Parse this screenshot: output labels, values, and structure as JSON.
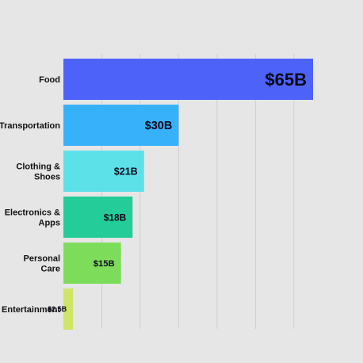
{
  "chart_data": {
    "type": "bar",
    "orientation": "horizontal",
    "categories": [
      "Food",
      "Transportation",
      "Clothing & Shoes",
      "Electronics & Apps",
      "Personal Care",
      "Entertainment"
    ],
    "category_lines": [
      [
        "Food"
      ],
      [
        "Transportation"
      ],
      [
        "Clothing &",
        "Shoes"
      ],
      [
        "Electronics &",
        "Apps"
      ],
      [
        "Personal",
        "Care"
      ],
      [
        "Entertainment"
      ]
    ],
    "values": [
      65,
      30,
      21,
      18,
      15,
      2.5
    ],
    "data_labels": [
      "$65B",
      "$30B",
      "$21B",
      "$18B",
      "$15B",
      "$2.5B"
    ],
    "colors": [
      "#4d62f8",
      "#38b1fb",
      "#5de1e9",
      "#23cc98",
      "#7ddd5b",
      "#cfe566"
    ],
    "unit": "billion USD",
    "xlim": [
      0,
      65
    ],
    "grid": true,
    "background": "#e6e6e6",
    "gridline_color": "#cfcfcf",
    "title": "",
    "xlabel": "",
    "ylabel": ""
  }
}
